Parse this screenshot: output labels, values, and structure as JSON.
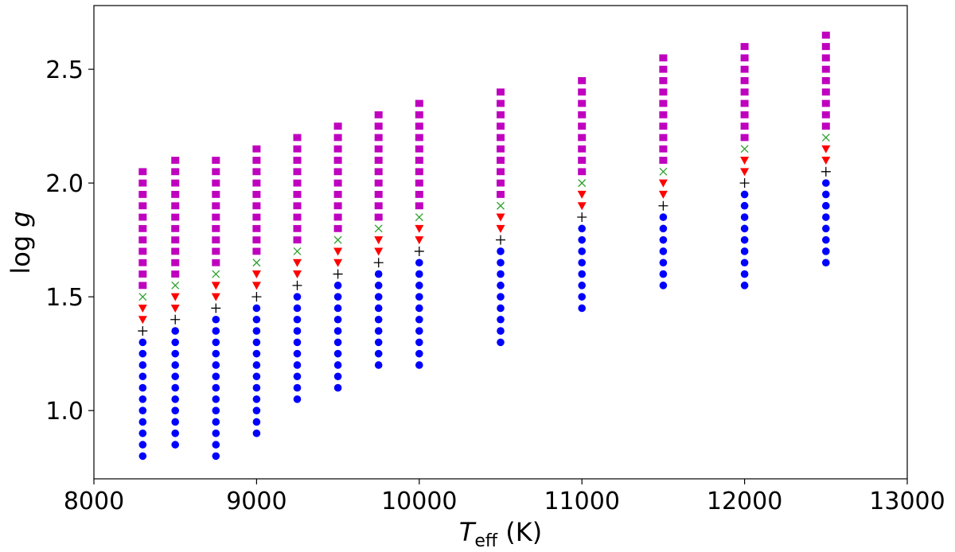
{
  "chart_data": {
    "type": "scatter",
    "title": "",
    "xlabel": {
      "main": "T",
      "sub": "eff",
      "unit": " (K)"
    },
    "ylabel": {
      "main": "log ",
      "italic": "g"
    },
    "xlim": [
      8000,
      13000
    ],
    "ylim": [
      0.7,
      2.78
    ],
    "xticks": [
      "8000",
      "9000",
      "10000",
      "11000",
      "12000",
      "13000"
    ],
    "yticks": [
      "1.0",
      "1.5",
      "2.0",
      "2.5"
    ],
    "grid": false,
    "legend": "none",
    "step": 0.05,
    "colors": {
      "circle": "#0000ff",
      "plus": "#000000",
      "triangle": "#ff0000",
      "cross": "#2ca02c",
      "square": "#bf00bf"
    },
    "columns": [
      {
        "teff": 8300,
        "circle": [
          0.8,
          1.3
        ],
        "plus": 1.35,
        "triangle": [
          1.4,
          1.45
        ],
        "cross": 1.5,
        "square": [
          1.55,
          2.05
        ]
      },
      {
        "teff": 8500,
        "circle": [
          0.85,
          1.35
        ],
        "plus": 1.4,
        "triangle": [
          1.45,
          1.5
        ],
        "cross": 1.55,
        "square": [
          1.6,
          2.1
        ]
      },
      {
        "teff": 8750,
        "circle": [
          0.8,
          1.4
        ],
        "plus": 1.45,
        "triangle": [
          1.5,
          1.55
        ],
        "cross": 1.6,
        "square": [
          1.65,
          2.1
        ]
      },
      {
        "teff": 9000,
        "circle": [
          0.9,
          1.45
        ],
        "plus": 1.5,
        "triangle": [
          1.55,
          1.6
        ],
        "cross": 1.65,
        "square": [
          1.7,
          2.15
        ]
      },
      {
        "teff": 9250,
        "circle": [
          1.05,
          1.5
        ],
        "plus": 1.55,
        "triangle": [
          1.6,
          1.65
        ],
        "cross": 1.7,
        "square": [
          1.75,
          2.2
        ]
      },
      {
        "teff": 9500,
        "circle": [
          1.1,
          1.55
        ],
        "plus": 1.6,
        "triangle": [
          1.65,
          1.7
        ],
        "cross": 1.75,
        "square": [
          1.8,
          2.25
        ]
      },
      {
        "teff": 9750,
        "circle": [
          1.2,
          1.6
        ],
        "plus": 1.65,
        "triangle": [
          1.7,
          1.75
        ],
        "cross": 1.8,
        "square": [
          1.85,
          2.3
        ]
      },
      {
        "teff": 10000,
        "circle": [
          1.2,
          1.65
        ],
        "plus": 1.7,
        "triangle": [
          1.75,
          1.8
        ],
        "cross": 1.85,
        "square": [
          1.9,
          2.35
        ]
      },
      {
        "teff": 10500,
        "circle": [
          1.3,
          1.7
        ],
        "plus": 1.75,
        "triangle": [
          1.8,
          1.85
        ],
        "cross": 1.9,
        "square": [
          1.95,
          2.4
        ]
      },
      {
        "teff": 11000,
        "circle": [
          1.45,
          1.8
        ],
        "plus": 1.85,
        "triangle": [
          1.9,
          1.95
        ],
        "cross": 2.0,
        "square": [
          2.05,
          2.45
        ]
      },
      {
        "teff": 11500,
        "circle": [
          1.55,
          1.85
        ],
        "plus": 1.9,
        "triangle": [
          1.95,
          2.0
        ],
        "cross": 2.05,
        "square": [
          2.1,
          2.55
        ]
      },
      {
        "teff": 12000,
        "circle": [
          1.55,
          1.95
        ],
        "plus": 2.0,
        "triangle": [
          2.05,
          2.1
        ],
        "cross": 2.15,
        "square": [
          2.2,
          2.6
        ]
      },
      {
        "teff": 12500,
        "circle": [
          1.65,
          2.0
        ],
        "plus": 2.05,
        "triangle": [
          2.1,
          2.15
        ],
        "cross": 2.2,
        "square": [
          2.25,
          2.65
        ]
      }
    ]
  }
}
